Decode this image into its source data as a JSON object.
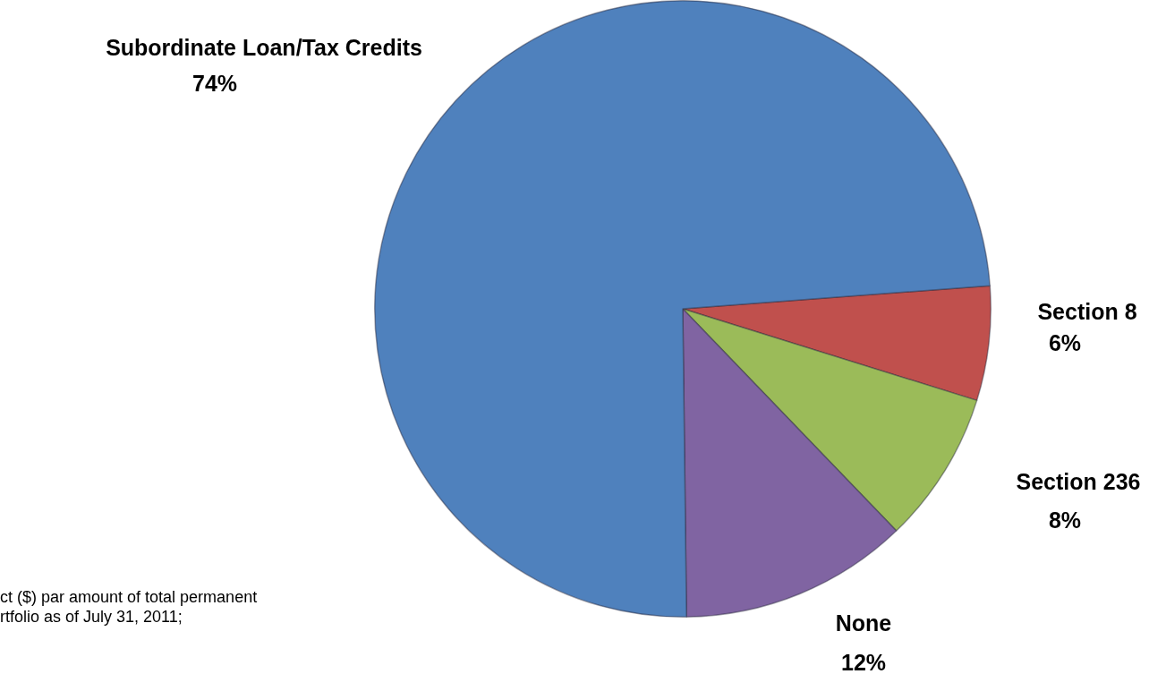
{
  "chart_data": {
    "type": "pie",
    "categories": [
      "Section 8",
      "Section 236",
      "None",
      "Subordinate Loan/Tax Credits"
    ],
    "values": [
      6,
      8,
      12,
      74
    ],
    "colors": [
      "#c0504d",
      "#9bbb59",
      "#8064a2",
      "#4f81bd"
    ],
    "value_labels": [
      "6%",
      "8%",
      "12%",
      "74%"
    ],
    "annotations": [
      "ct ($) par amount of total permanent",
      "rtfolio as of July 31, 2011;"
    ]
  }
}
